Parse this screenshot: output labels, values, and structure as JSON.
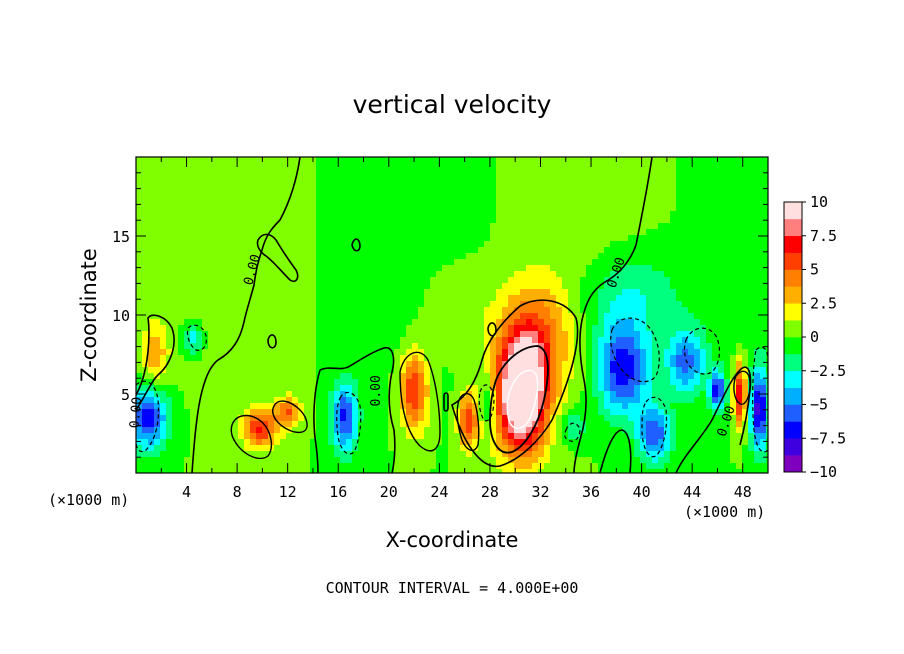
{
  "chart_data": {
    "type": "heatmap",
    "title": "vertical velocity",
    "xlabel": "X-coordinate",
    "ylabel": "Z-coordinate",
    "x_unit": "(×1000 m)",
    "x_unit_right": "(×1000 m)",
    "xlim": [
      0,
      50
    ],
    "ylim": [
      0,
      20
    ],
    "x_ticks": [
      4,
      8,
      12,
      16,
      20,
      24,
      28,
      32,
      36,
      40,
      44,
      48
    ],
    "y_ticks": [
      5,
      10,
      15
    ],
    "colorbar": {
      "range": [
        -10,
        10
      ],
      "tick_labels": [
        "10",
        "7.5",
        "5",
        "2.5",
        "0",
        "−2.5",
        "−5",
        "−7.5",
        "−10"
      ],
      "tick_values": [
        10,
        7.5,
        5,
        2.5,
        0,
        -2.5,
        -5,
        -7.5,
        -10
      ],
      "colors": [
        "#7f00bf",
        "#3f00df",
        "#0000ff",
        "#1f5fff",
        "#00afff",
        "#00ffff",
        "#00ff7f",
        "#00ff00",
        "#7fff00",
        "#ffff00",
        "#ffaf00",
        "#ff7f00",
        "#ff3f00",
        "#ff0000",
        "#ff7f7f",
        "#ffdfdf"
      ]
    },
    "contour_labels": [
      {
        "text": "0.00",
        "x": 9.5,
        "z": 12.8,
        "angle": -75
      },
      {
        "text": "0.00",
        "x": 19.3,
        "z": 5.2,
        "angle": -90
      },
      {
        "text": "0.00",
        "x": 38.3,
        "z": 12.6,
        "angle": -72
      },
      {
        "text": "0.00",
        "x": 47.0,
        "z": 3.2,
        "angle": -72
      },
      {
        "text": "0.00",
        "x": 0.3,
        "z": 3.8,
        "angle": -85
      }
    ],
    "features": [
      {
        "x": 30.5,
        "z": 4.8,
        "w": 12.5,
        "sx": 2.0,
        "sz": 3.6
      },
      {
        "x": 31.5,
        "z": 8.5,
        "w": 4.5,
        "sx": 2.8,
        "sz": 3.5
      },
      {
        "x": 22.0,
        "z": 5.2,
        "w": 6.5,
        "sx": 1.1,
        "sz": 2.5
      },
      {
        "x": 26.3,
        "z": 3.3,
        "w": 5.8,
        "sx": 0.8,
        "sz": 1.8
      },
      {
        "x": 9.8,
        "z": 2.8,
        "w": 6.5,
        "sx": 1.3,
        "sz": 1.2
      },
      {
        "x": 12.0,
        "z": 3.8,
        "w": 5.0,
        "sx": 1.0,
        "sz": 1.0
      },
      {
        "x": 47.8,
        "z": 5.0,
        "w": 7.5,
        "sx": 0.5,
        "sz": 2.0
      },
      {
        "x": 1.5,
        "z": 7.5,
        "w": 3.5,
        "sx": 1.0,
        "sz": 2.0
      },
      {
        "x": 25.0,
        "z": 10.5,
        "w": 1.5,
        "sx": 3.0,
        "sz": 3.0
      },
      {
        "x": 16.5,
        "z": 3.5,
        "w": -6.5,
        "sx": 1.0,
        "sz": 2.2
      },
      {
        "x": 1.0,
        "z": 3.5,
        "w": -7.0,
        "sx": 1.5,
        "sz": 2.0
      },
      {
        "x": 4.5,
        "z": 8.5,
        "w": -3.5,
        "sx": 0.8,
        "sz": 1.0
      },
      {
        "x": 27.8,
        "z": 4.5,
        "w": -3.0,
        "sx": 0.6,
        "sz": 1.6
      },
      {
        "x": 38.5,
        "z": 6.5,
        "w": -7.5,
        "sx": 2.0,
        "sz": 2.8
      },
      {
        "x": 41.0,
        "z": 2.5,
        "w": -6.0,
        "sx": 1.3,
        "sz": 1.8
      },
      {
        "x": 43.5,
        "z": 7.0,
        "w": -5.5,
        "sx": 1.5,
        "sz": 2.0
      },
      {
        "x": 46.0,
        "z": 5.2,
        "w": -7.5,
        "sx": 0.6,
        "sz": 1.2
      },
      {
        "x": 49.3,
        "z": 4.0,
        "w": -8.0,
        "sx": 0.7,
        "sz": 2.5
      },
      {
        "x": 39.0,
        "z": 11.0,
        "w": -3.0,
        "sx": 4.0,
        "sz": 3.0
      },
      {
        "x": 34.5,
        "z": 3.0,
        "w": -2.5,
        "sx": 1.2,
        "sz": 1.0
      }
    ]
  },
  "footer": {
    "contour_interval": "CONTOUR INTERVAL = 4.000E+00"
  }
}
